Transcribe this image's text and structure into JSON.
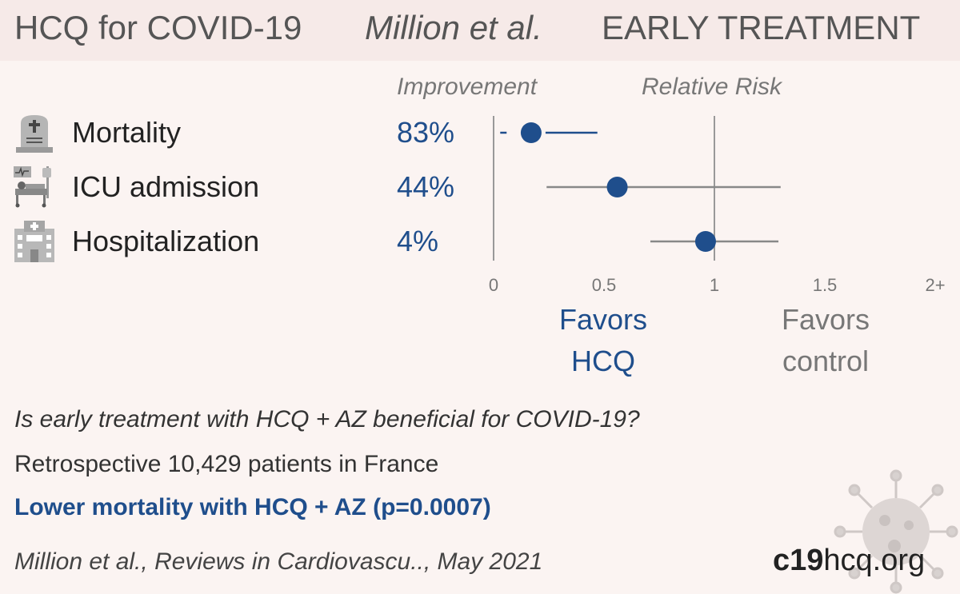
{
  "header": {
    "title": "HCQ for COVID-19",
    "study": "Million et al.",
    "stage": "EARLY TREATMENT"
  },
  "columns": {
    "improvement": "Improvement",
    "relative_risk": "Relative Risk"
  },
  "outcomes": [
    {
      "label": "Mortality",
      "improvement": "83%",
      "icon": "tombstone-icon"
    },
    {
      "label": "ICU admission",
      "improvement": "44%",
      "icon": "icu-bed-icon"
    },
    {
      "label": "Hospitalization",
      "improvement": "4%",
      "icon": "hospital-icon"
    }
  ],
  "chart_data": {
    "type": "scatter",
    "title": "",
    "xlabel": "Relative Risk",
    "xlim": [
      0,
      2
    ],
    "x_ticks": [
      "0",
      "0.5",
      "1",
      "1.5",
      "2+"
    ],
    "reference_line": 1,
    "series": [
      {
        "name": "Mortality",
        "rr": 0.17,
        "ci_low": 0.03,
        "ci_high": 0.47
      },
      {
        "name": "ICU admission",
        "rr": 0.56,
        "ci_low": 0.24,
        "ci_high": 1.3
      },
      {
        "name": "Hospitalization",
        "rr": 0.96,
        "ci_low": 0.71,
        "ci_high": 1.29
      }
    ],
    "colors": {
      "point": "#1f4e8c",
      "ci_mortality": "#1f4e8c",
      "ci_other": "#888888"
    }
  },
  "favors": {
    "left": [
      "Favors",
      "HCQ"
    ],
    "right": [
      "Favors",
      "control"
    ]
  },
  "summary": {
    "question": "Is early treatment with HCQ + AZ beneficial for COVID-19?",
    "details": "Retrospective 10,429 patients in France",
    "result": "Lower mortality with HCQ + AZ (p=0.0007)",
    "citation": "Million et al., Reviews in Cardiovascu.., May 2021"
  },
  "site": {
    "bold": "c19",
    "rest": "hcq.org"
  },
  "colors": {
    "accent": "#1f4e8c",
    "background": "#fbf4f2",
    "header_bg": "#f6eae8"
  }
}
